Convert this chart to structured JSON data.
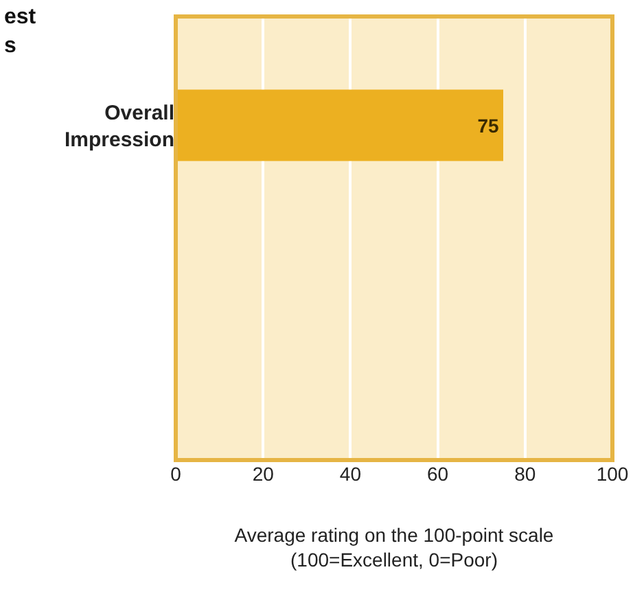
{
  "chart_data": {
    "type": "bar",
    "orientation": "horizontal",
    "title": "est\ns",
    "categories": [
      "Overall\nImpression"
    ],
    "values": [
      75
    ],
    "color": "#ecb021",
    "data_labels": true,
    "xlim": [
      0,
      100
    ],
    "xticks": [
      0,
      20,
      40,
      60,
      80,
      100
    ],
    "grid": "x",
    "xlabel": "Average rating on the 100-point scale\n(100=Excellent, 0=Poor)"
  }
}
